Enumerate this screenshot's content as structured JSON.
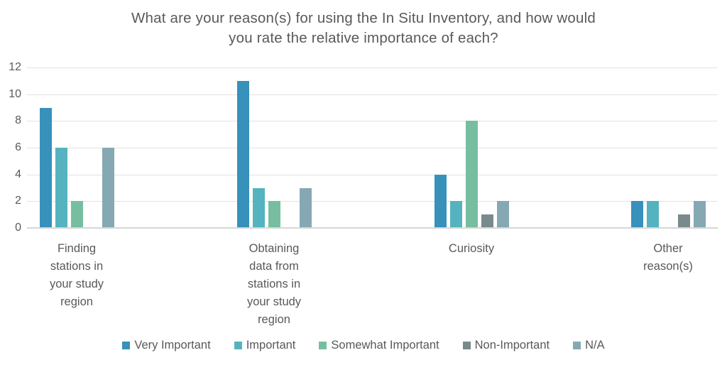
{
  "chart_data": {
    "type": "bar",
    "title": "What are your reason(s) for using the In Situ Inventory, and how would you rate the relative importance of each?",
    "title_lines": [
      "What are your reason(s) for using the In Situ Inventory, and how would",
      "you rate the relative importance of each?"
    ],
    "categories": [
      "Finding stations in your study region",
      "Obtaining data from stations in your study region",
      "Curiosity",
      "Other reason(s)"
    ],
    "series": [
      {
        "name": "Very Important",
        "color": "#3791BA",
        "values": [
          9,
          11,
          4,
          2
        ]
      },
      {
        "name": "Important",
        "color": "#54B3BF",
        "values": [
          6,
          3,
          2,
          2
        ]
      },
      {
        "name": "Somewhat Important",
        "color": "#77BEA1",
        "values": [
          2,
          2,
          8,
          0
        ]
      },
      {
        "name": "Non-Important",
        "color": "#798A8C",
        "values": [
          0,
          0,
          1,
          1
        ]
      },
      {
        "name": "N/A",
        "color": "#85A8B3",
        "values": [
          6,
          3,
          2,
          2
        ]
      }
    ],
    "xlabel": "",
    "ylabel": "",
    "ylim": [
      0,
      12
    ],
    "yticks": [
      0,
      2,
      4,
      6,
      8,
      10,
      12
    ],
    "grid": true,
    "legend_position": "bottom",
    "text_color": "#595959",
    "gridline_color": "#E2E2E2"
  }
}
